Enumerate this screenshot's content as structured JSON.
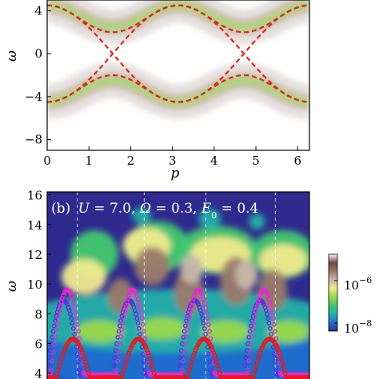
{
  "chart_data": [
    {
      "panel": "top",
      "type": "heatmap",
      "title": "",
      "xlabel": "p",
      "ylabel": "ω",
      "xlim": [
        0,
        6.283
      ],
      "ylim": [
        -9,
        5
      ],
      "xticks": [
        0,
        1,
        2,
        3,
        4,
        5,
        6
      ],
      "yticks": [
        -8,
        -4,
        0,
        4
      ],
      "x_tick_labels": [
        "0",
        "1",
        "2",
        "3",
        "4",
        "5",
        "6"
      ],
      "y_tick_labels": [
        "−8",
        "−4",
        "0",
        "4"
      ],
      "band_center_upper": 3.5,
      "band_center_lower": -3.5,
      "band_amplitude": 1.0,
      "dashed_curves": [
        {
          "color": "#e0241c",
          "points": [
            [
              0,
              4.5
            ],
            [
              0.785,
              3.0
            ],
            [
              1.571,
              2.0
            ],
            [
              2.356,
              3.0
            ],
            [
              3.142,
              4.5
            ],
            [
              3.927,
              3.0
            ],
            [
              4.712,
              2.0
            ],
            [
              5.498,
              3.0
            ],
            [
              6.283,
              4.5
            ]
          ]
        },
        {
          "color": "#e0241c",
          "points": [
            [
              0,
              4.5
            ],
            [
              3.142,
              -4.5
            ],
            [
              6.283,
              4.5
            ]
          ]
        },
        {
          "color": "#e0241c",
          "points": [
            [
              0,
              -4.5
            ],
            [
              3.142,
              4.5
            ],
            [
              6.283,
              -4.5
            ]
          ]
        },
        {
          "color": "#e0241c",
          "points": [
            [
              0,
              -4.5
            ],
            [
              0.785,
              -3.0
            ],
            [
              1.571,
              -2.0
            ],
            [
              2.356,
              -3.0
            ],
            [
              3.142,
              -4.5
            ],
            [
              3.927,
              -3.0
            ],
            [
              4.712,
              -2.0
            ],
            [
              5.498,
              -3.0
            ],
            [
              6.283,
              -4.5
            ]
          ]
        }
      ],
      "grid": false
    },
    {
      "panel": "bottom",
      "type": "heatmap",
      "title": "(b) U = 7.0, Ω = 0.3, E0 = 0.4",
      "title_parts": {
        "panel_label": "(b)",
        "U": "7.0",
        "Omega": "0.3",
        "E0": "0.4"
      },
      "xlabel": "",
      "ylabel": "ω",
      "ylim": [
        3.6,
        16.2
      ],
      "yticks": [
        4,
        6,
        8,
        10,
        12,
        14,
        16
      ],
      "y_tick_labels": [
        "4",
        "6",
        "8",
        "10",
        "12",
        "14",
        "16"
      ],
      "colorbar": {
        "scale": "log",
        "range": [
          1e-08,
          1e-05
        ],
        "tick_labels": [
          {
            "base": "10",
            "exp": "−6"
          },
          {
            "base": "10",
            "exp": "−8"
          }
        ],
        "colors": [
          "#2e2a8e",
          "#1e70d0",
          "#25b0a8",
          "#40c870",
          "#9ad84a",
          "#f0ea8e",
          "#c7b8a8",
          "#9a7a6a",
          "#6e4a3e",
          "#ffffff"
        ]
      },
      "series": [
        {
          "color": "#5b2be8",
          "marker": "open-circle",
          "periods": 4,
          "min": 3.9,
          "max": 8.9
        },
        {
          "color": "#e41a1c",
          "marker": "open-circle",
          "periods": 4,
          "min": 3.7,
          "max": 6.3
        },
        {
          "color": "#e52ad0",
          "marker": "open-circle",
          "note": "magenta"
        }
      ],
      "grid": false
    }
  ]
}
